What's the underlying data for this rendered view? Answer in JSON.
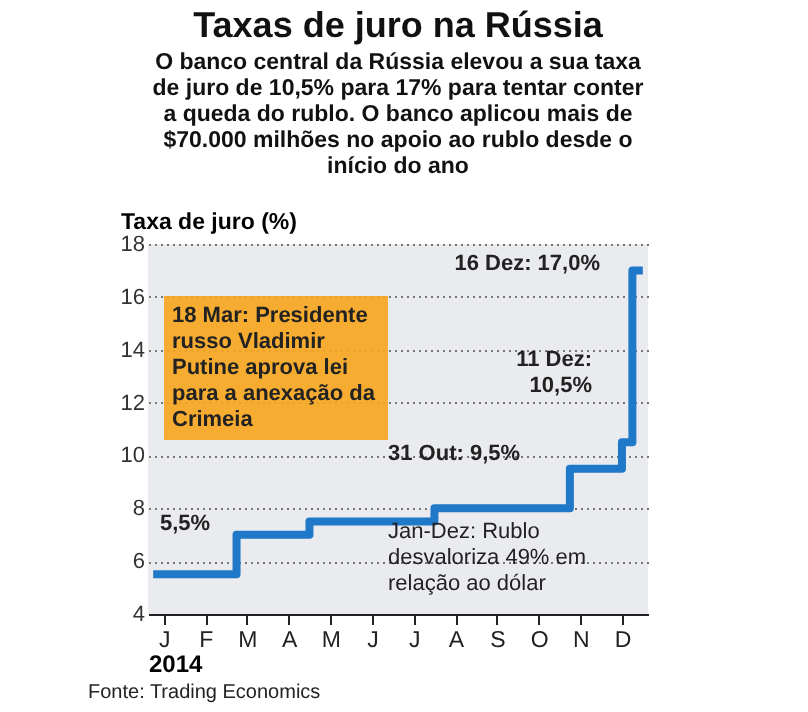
{
  "chart_data": {
    "type": "step",
    "title": "Taxas de juro na Rússia",
    "subtitle": "O banco central da Rússia elevou a sua taxa de juro de 10,5% para 17% para tentar conter a queda do rublo. O banco aplicou mais de $70.000 milhões no apoio ao rublo desde o início do ano",
    "ylabel": "Taxa de juro (%)",
    "xlabel": "2014",
    "categories": [
      null,
      "J",
      null,
      null,
      null,
      "F",
      null,
      null,
      null,
      "M",
      null,
      null,
      null,
      "A",
      null,
      null,
      null,
      "M",
      null,
      null,
      null,
      "J",
      null,
      null,
      null,
      "J",
      null,
      null,
      null,
      "A",
      null,
      null,
      null,
      "S",
      null,
      null,
      null,
      "O",
      null,
      null,
      null,
      "N",
      null,
      null,
      null,
      "D",
      null,
      null
    ],
    "series": [
      {
        "color": "#1f78c8",
        "values": [
          5.5,
          5.5,
          5.5,
          5.5,
          5.5,
          5.5,
          5.5,
          5.5,
          7.0,
          7.0,
          7.0,
          7.0,
          7.0,
          7.0,
          7.0,
          7.5,
          7.5,
          7.5,
          7.5,
          7.5,
          7.5,
          7.5,
          7.5,
          7.5,
          7.5,
          7.5,
          7.5,
          8.0,
          8.0,
          8.0,
          8.0,
          8.0,
          8.0,
          8.0,
          8.0,
          8.0,
          8.0,
          8.0,
          8.0,
          8.0,
          9.5,
          9.5,
          9.5,
          9.5,
          9.5,
          10.5,
          17.0,
          17.0
        ]
      }
    ],
    "ylim": [
      4,
      18
    ],
    "yticks": [
      4,
      6,
      8,
      10,
      12,
      14,
      16,
      18
    ],
    "grid": "y",
    "line_style": "solid",
    "marker": "none",
    "annotations": [
      "16 Dez: 17,0%",
      "11 Dez: 10,5%",
      "31 Out: 9,5%",
      "5,5%",
      "18 Mar: Presidente russo Vladimir Putine aprova lei para a anexação da Crimeia",
      "Jan-Dez: Rublo desvaloriza 49% em relação ao dólar",
      "Fonte: Trading Economics"
    ]
  }
}
